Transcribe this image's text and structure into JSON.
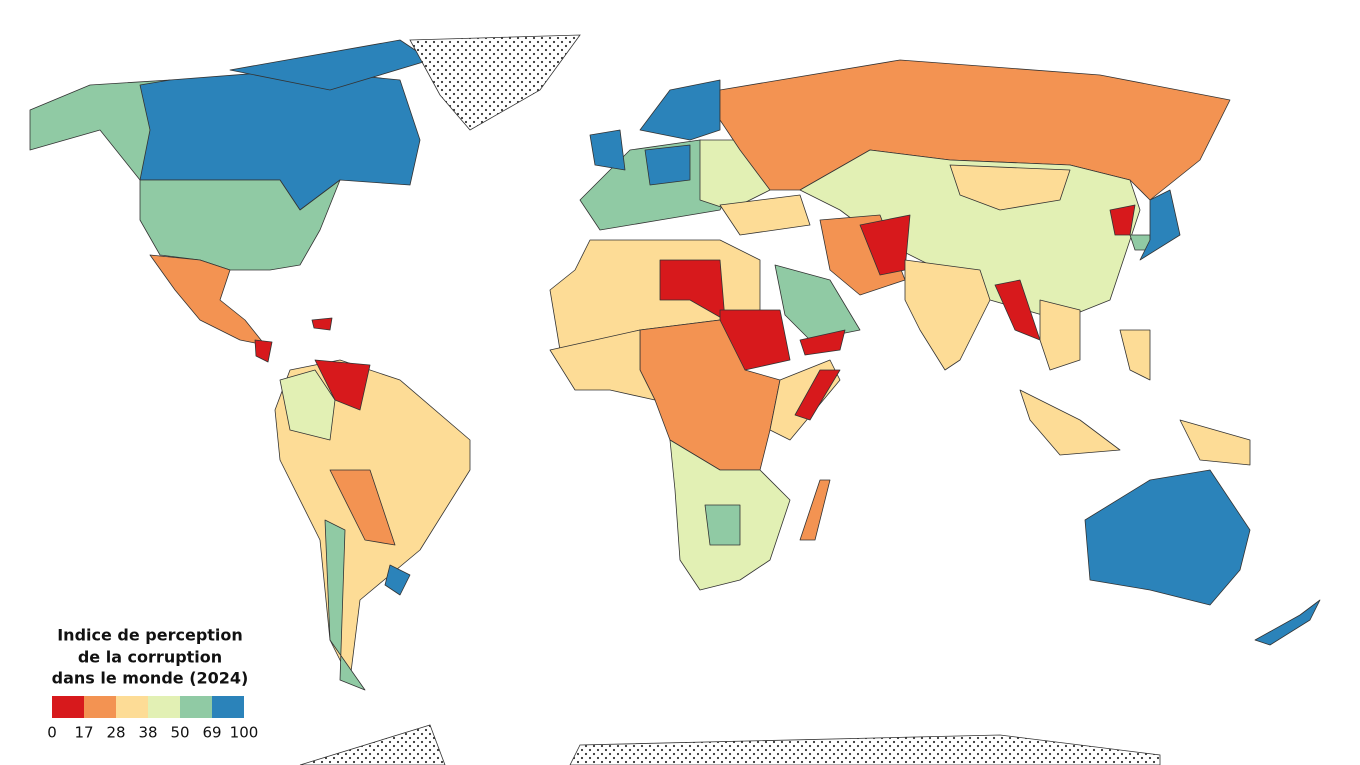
{
  "legend": {
    "title_lines": [
      "Indice de perception",
      "de la corruption",
      "dans le monde (2024)"
    ],
    "breaks": [
      0,
      17,
      28,
      38,
      50,
      69,
      100
    ],
    "colors": [
      "#d7191c",
      "#f39352",
      "#fddc96",
      "#e2f0b4",
      "#90caa4",
      "#2b83ba"
    ]
  }
}
